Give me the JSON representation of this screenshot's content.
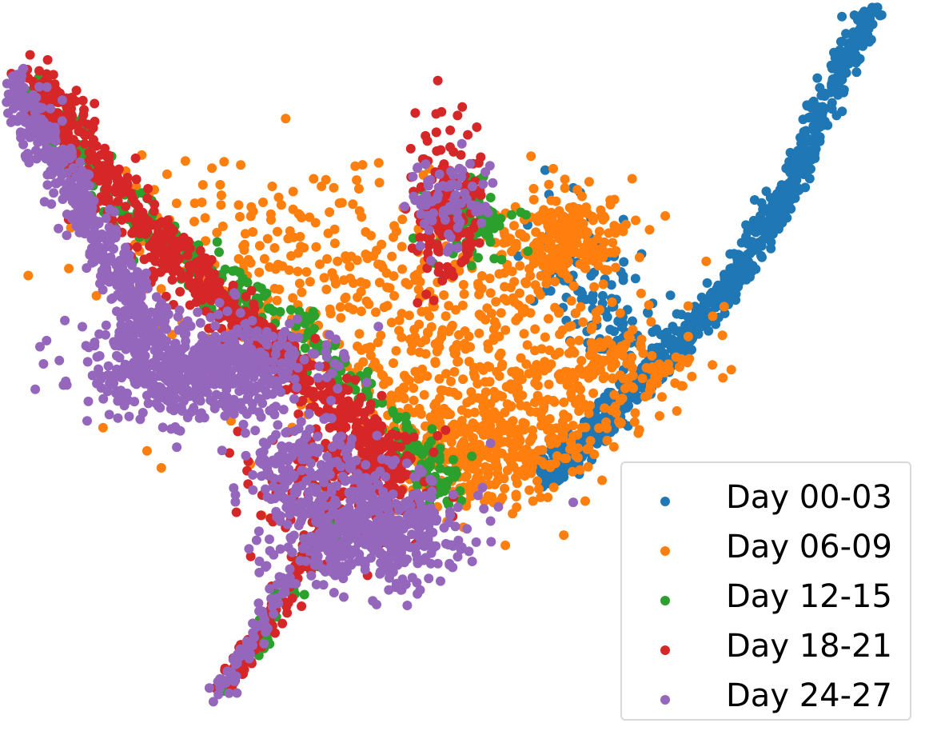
{
  "chart_data": {
    "type": "scatter",
    "title": "",
    "xlabel": "",
    "ylabel": "",
    "axes_visible": false,
    "grid": false,
    "xlim": [
      0,
      100
    ],
    "ylim": [
      0,
      100
    ],
    "legend_position": "bottom-right",
    "series": [
      {
        "name": "Day 00-03",
        "color": "#1f77b4"
      },
      {
        "name": "Day 06-09",
        "color": "#ff7f0e"
      },
      {
        "name": "Day 12-15",
        "color": "#2ca02c"
      },
      {
        "name": "Day 18-21",
        "color": "#d62728"
      },
      {
        "name": "Day 24-27",
        "color": "#9467bd"
      }
    ]
  },
  "legend": {
    "items": [
      {
        "label": "Day 00-03",
        "color": "#1f77b4"
      },
      {
        "label": "Day 06-09",
        "color": "#ff7f0e"
      },
      {
        "label": "Day 12-15",
        "color": "#2ca02c"
      },
      {
        "label": "Day 18-21",
        "color": "#d62728"
      },
      {
        "label": "Day 24-27",
        "color": "#9467bd"
      }
    ]
  }
}
